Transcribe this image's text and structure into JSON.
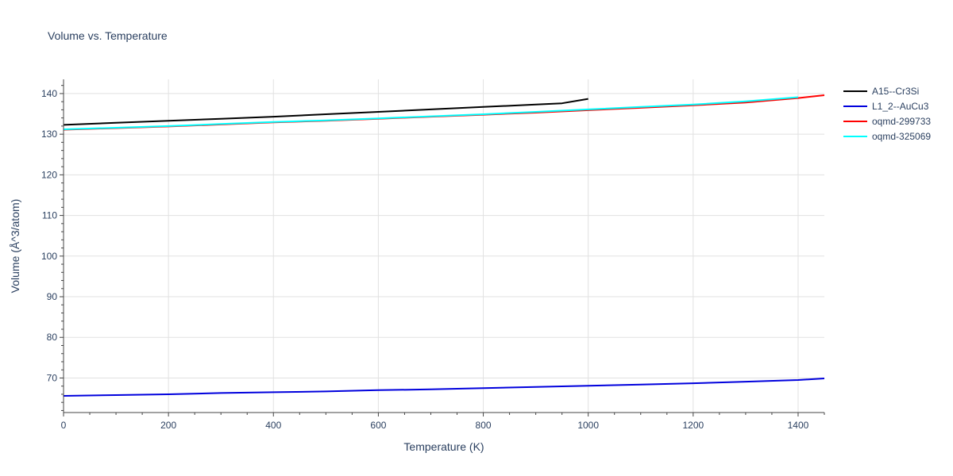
{
  "chart_data": {
    "type": "line",
    "title": "Volume vs. Temperature",
    "xlabel": "Temperature (K)",
    "ylabel": "Volume (Å^3/atom)",
    "xlim": [
      0,
      1450
    ],
    "ylim": [
      61.5,
      143.5
    ],
    "x_ticks": [
      0,
      200,
      400,
      600,
      800,
      1000,
      1200,
      1400
    ],
    "y_ticks": [
      70,
      80,
      90,
      100,
      110,
      120,
      130,
      140
    ],
    "grid": true,
    "legend_position": "top-right",
    "series": [
      {
        "name": "A15--Cr3Si",
        "color": "#000000",
        "x": [
          0,
          100,
          200,
          300,
          400,
          500,
          600,
          700,
          800,
          900,
          950,
          1000
        ],
        "y": [
          132.3,
          132.8,
          133.3,
          133.8,
          134.3,
          134.9,
          135.5,
          136.1,
          136.7,
          137.3,
          137.6,
          138.7
        ]
      },
      {
        "name": "L1_2--AuCu3",
        "color": "#0000dd",
        "x": [
          0,
          100,
          200,
          300,
          400,
          500,
          600,
          700,
          800,
          900,
          1000,
          1100,
          1200,
          1300,
          1400,
          1450
        ],
        "y": [
          65.6,
          65.8,
          66.0,
          66.3,
          66.5,
          66.7,
          67.0,
          67.2,
          67.5,
          67.8,
          68.1,
          68.4,
          68.7,
          69.1,
          69.5,
          69.9
        ]
      },
      {
        "name": "oqmd-299733",
        "color": "#ff0000",
        "x": [
          0,
          100,
          200,
          300,
          400,
          500,
          600,
          700,
          800,
          900,
          1000,
          1100,
          1200,
          1300,
          1400,
          1450
        ],
        "y": [
          131.1,
          131.5,
          131.9,
          132.4,
          132.9,
          133.3,
          133.8,
          134.3,
          134.8,
          135.3,
          135.9,
          136.5,
          137.1,
          137.8,
          138.9,
          139.6
        ]
      },
      {
        "name": "oqmd-325069",
        "color": "#00ffff",
        "x": [
          0,
          100,
          200,
          300,
          400,
          500,
          600,
          700,
          800,
          900,
          1000,
          1100,
          1200,
          1300,
          1400
        ],
        "y": [
          131.2,
          131.6,
          132.0,
          132.5,
          133.0,
          133.4,
          133.9,
          134.4,
          134.9,
          135.5,
          136.1,
          136.7,
          137.3,
          138.1,
          139.1
        ]
      }
    ]
  }
}
